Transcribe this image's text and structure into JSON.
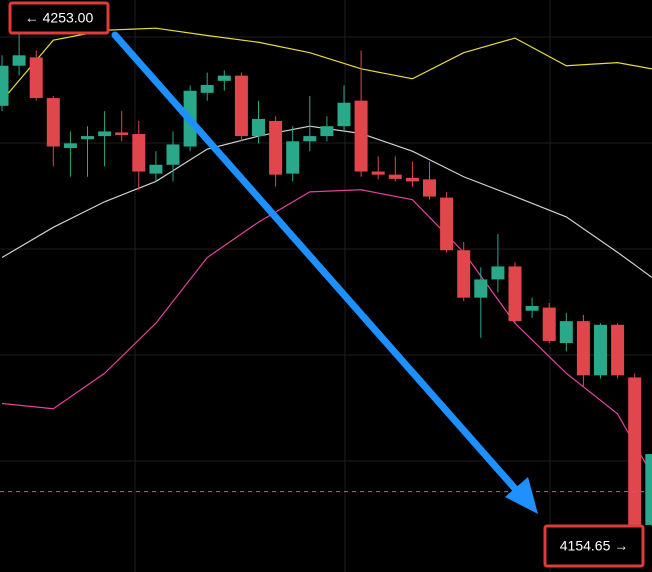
{
  "chart_data": {
    "type": "candlestick",
    "ylim": [
      4145.97,
      4255.71
    ],
    "grid": true,
    "up_color": "#2aa88a",
    "down_color": "#e0474c",
    "open": [
      4235.4,
      4243.1,
      4244.7,
      4236.9,
      4227.3,
      4229.0,
      4229.6,
      4230.3,
      4230.0,
      4222.4,
      4224.1,
      4227.6,
      4237.9,
      4240.2,
      4241.2,
      4229.6,
      4232.5,
      4222.4,
      4228.6,
      4229.6,
      4231.5,
      4236.4,
      4222.8,
      4222.2,
      4221.6,
      4221.3,
      4217.8,
      4207.7,
      4198.6,
      4202.1,
      4204.6,
      4196.1,
      4196.7,
      4189.9,
      4194.1,
      4183.7,
      4193.4,
      4183.3,
      4155.0
    ],
    "high": [
      4245.1,
      4253.0,
      4246.0,
      4237.3,
      4230.5,
      4231.5,
      4234.4,
      4234.4,
      4232.5,
      4226.7,
      4230.5,
      4239.3,
      4241.8,
      4242.2,
      4241.8,
      4236.4,
      4233.4,
      4231.5,
      4237.3,
      4233.4,
      4239.3,
      4246.0,
      4225.7,
      4225.7,
      4224.7,
      4224.7,
      4218.9,
      4209.3,
      4204.4,
      4210.8,
      4205.4,
      4198.6,
      4197.6,
      4195.7,
      4195.3,
      4193.7,
      4193.7,
      4184.1,
      4168.6
    ],
    "low": [
      4234.4,
      4241.2,
      4236.4,
      4223.8,
      4221.8,
      4221.8,
      4223.8,
      4228.6,
      4219.3,
      4220.9,
      4220.9,
      4226.7,
      4236.4,
      4238.3,
      4228.6,
      4228.2,
      4219.9,
      4220.9,
      4226.7,
      4228.6,
      4230.5,
      4221.8,
      4221.3,
      4220.9,
      4219.9,
      4217.4,
      4207.3,
      4198.0,
      4190.9,
      4199.6,
      4193.7,
      4194.7,
      4189.9,
      4188.3,
      4181.6,
      4183.1,
      4183.1,
      4154.65,
      4154.8
    ],
    "close": [
      4243.1,
      4245.1,
      4236.9,
      4227.6,
      4228.2,
      4229.6,
      4230.5,
      4229.8,
      4222.8,
      4224.1,
      4228.0,
      4238.3,
      4239.4,
      4241.2,
      4229.6,
      4232.9,
      4222.2,
      4228.6,
      4229.6,
      4231.5,
      4236.0,
      4222.8,
      4222.2,
      4221.4,
      4220.9,
      4218.0,
      4207.7,
      4198.6,
      4202.1,
      4204.6,
      4194.1,
      4197.0,
      4190.3,
      4194.1,
      4183.7,
      4193.4,
      4183.7,
      4154.8,
      4168.6
    ],
    "lines": [
      {
        "color": "#e6dc3c",
        "x": [
          0,
          3,
          6,
          9,
          12,
          15,
          18,
          21,
          24,
          27,
          30,
          33,
          36,
          38
        ],
        "values": [
          4236.4,
          4248.0,
          4249.9,
          4250.3,
          4248.9,
          4247.6,
          4245.6,
          4242.5,
          4240.6,
          4245.6,
          4248.4,
          4243.1,
          4243.7,
          4242.5
        ]
      },
      {
        "color": "#cfcfcf",
        "x": [
          0,
          3,
          6,
          9,
          12,
          15,
          18,
          21,
          24,
          27,
          30,
          33,
          36,
          38
        ],
        "values": [
          4206.3,
          4212.1,
          4217.0,
          4220.9,
          4227.1,
          4229.6,
          4231.5,
          4230.1,
          4226.7,
          4221.8,
          4218.0,
          4214.1,
          4207.3,
          4202.5
        ]
      },
      {
        "color": "#e0449a",
        "x": [
          0,
          3,
          6,
          9,
          12,
          15,
          18,
          21,
          24,
          27,
          30,
          33,
          36,
          38
        ],
        "values": [
          4178.3,
          4177.3,
          4184.1,
          4193.7,
          4206.3,
          4213.1,
          4218.9,
          4219.3,
          4217.4,
          4207.3,
          4193.7,
          4184.1,
          4176.3,
          4164.7
        ]
      }
    ],
    "price_line": 4161.4,
    "annotations": [
      {
        "value": 4253.0,
        "label": "← 4253.00"
      },
      {
        "value": 4154.65,
        "label": "4154.65 →"
      }
    ]
  }
}
